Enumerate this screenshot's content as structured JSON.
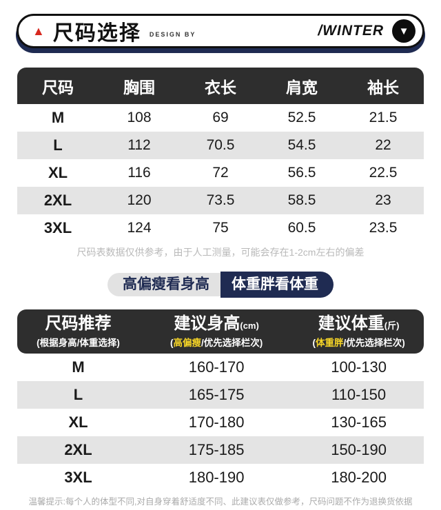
{
  "header": {
    "triangle_icon": "▲",
    "title": "尺码选择",
    "design_by": "DESIGN BY",
    "brand": "/WINTER",
    "arrow_icon": "▼"
  },
  "colors": {
    "navy": "#1f2b52",
    "table_header_dark": "#2e2e2e",
    "row_stripe": "#e4e4e4",
    "highlight_yellow": "#f5d427",
    "accent_red": "#d7281f"
  },
  "size_table": {
    "columns": [
      "尺码",
      "胸围",
      "衣长",
      "肩宽",
      "袖长"
    ],
    "rows": [
      {
        "size": "M",
        "chest": "108",
        "length": "69",
        "shoulder": "52.5",
        "sleeve": "21.5"
      },
      {
        "size": "L",
        "chest": "112",
        "length": "70.5",
        "shoulder": "54.5",
        "sleeve": "22"
      },
      {
        "size": "XL",
        "chest": "116",
        "length": "72",
        "shoulder": "56.5",
        "sleeve": "22.5"
      },
      {
        "size": "2XL",
        "chest": "120",
        "length": "73.5",
        "shoulder": "58.5",
        "sleeve": "23"
      },
      {
        "size": "3XL",
        "chest": "124",
        "length": "75",
        "shoulder": "60.5",
        "sleeve": "23.5"
      }
    ],
    "note": "尺码表数据仅供参考，由于人工测量，可能会存在1-2cm左右的偏差"
  },
  "badges": {
    "left": "高偏瘦看身高",
    "right": "体重胖看体重"
  },
  "recommend_table": {
    "columns": [
      {
        "title": "尺码推荐",
        "unit": "",
        "sub_prefix": "(根据身高/体重选择)",
        "sub_hl": "",
        "sub_rest": ""
      },
      {
        "title": "建议身高",
        "unit": "(cm)",
        "sub_prefix": "(",
        "sub_hl": "高偏瘦",
        "sub_rest": "/优先选择栏次)"
      },
      {
        "title": "建议体重",
        "unit": "(斤)",
        "sub_prefix": "(",
        "sub_hl": "体重胖",
        "sub_rest": "/优先选择栏次)"
      }
    ],
    "rows": [
      {
        "size": "M",
        "height": "160-170",
        "weight": "100-130"
      },
      {
        "size": "L",
        "height": "165-175",
        "weight": "110-150"
      },
      {
        "size": "XL",
        "height": "170-180",
        "weight": "130-165"
      },
      {
        "size": "2XL",
        "height": "175-185",
        "weight": "150-190"
      },
      {
        "size": "3XL",
        "height": "180-190",
        "weight": "180-200"
      }
    ],
    "note": "温馨提示:每个人的体型不同,对自身穿着舒适度不同、此建议表仅做参考，尺码问题不作为退换货依据"
  }
}
